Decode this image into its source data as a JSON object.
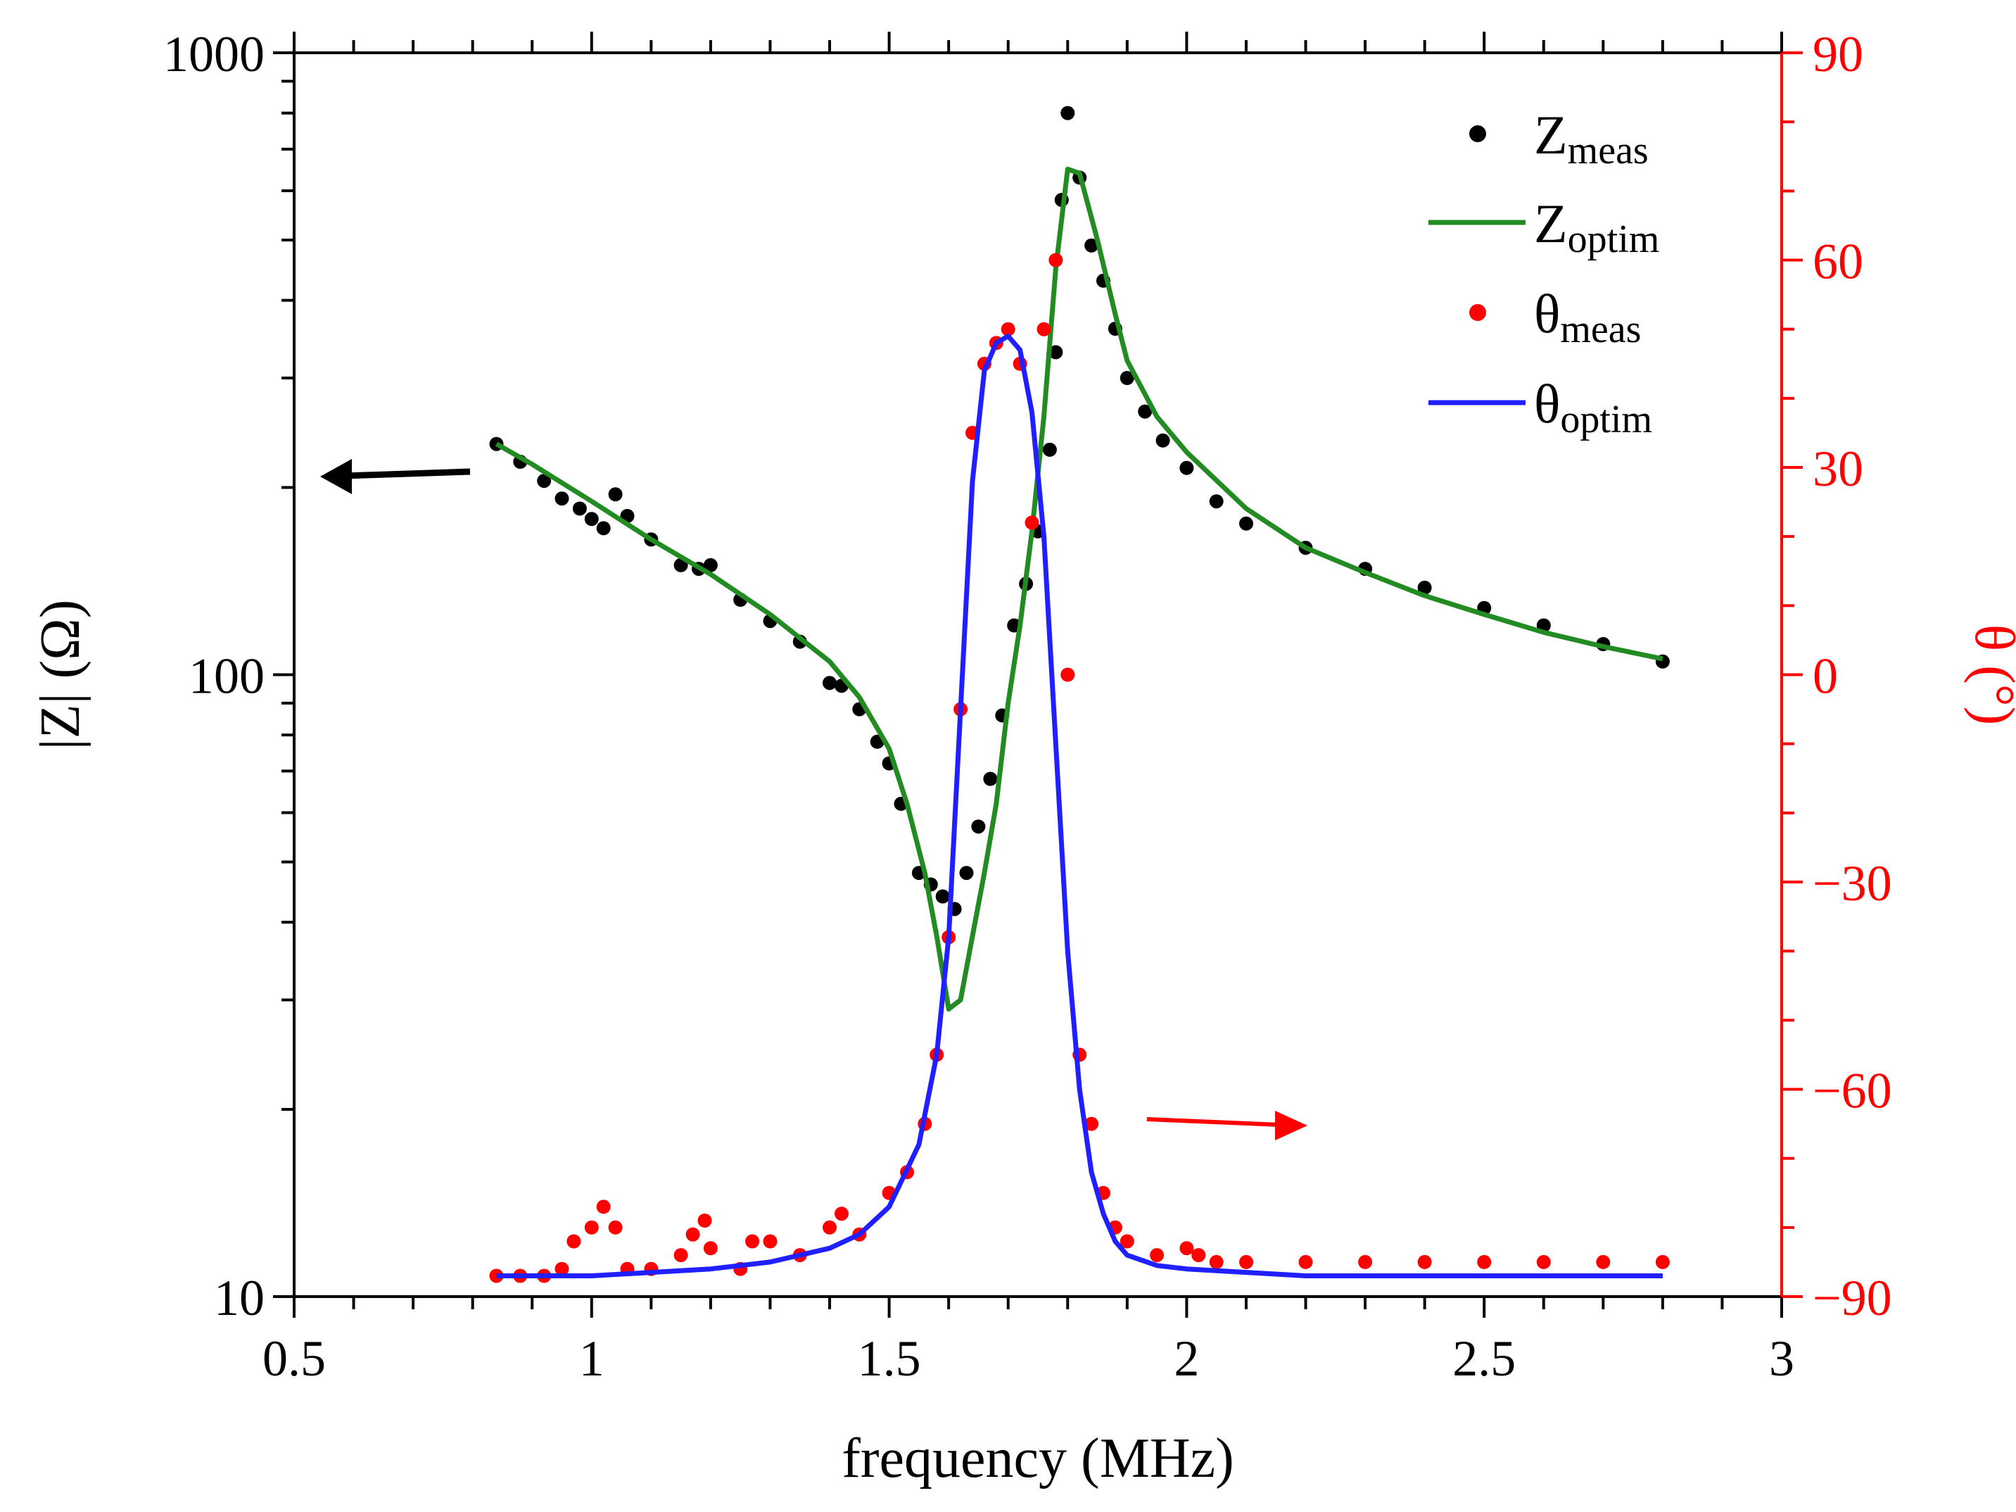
{
  "chart_data": {
    "type": "scatter",
    "title": "",
    "xlabel": "frequency (MHz)",
    "ylabel_left": "|Z| (Ω)",
    "ylabel_right": "θ (°)",
    "xlim": [
      0.5,
      3
    ],
    "ylim_left": [
      10,
      1000
    ],
    "ylim_right": [
      -90,
      90
    ],
    "yscale_left": "log",
    "grid": false,
    "legend_position": "top-right",
    "x_ticks": [
      {
        "value": 0.5,
        "label": "0.5"
      },
      {
        "value": 1,
        "label": "1"
      },
      {
        "value": 1.5,
        "label": "1.5"
      },
      {
        "value": 2,
        "label": "2"
      },
      {
        "value": 2.5,
        "label": "2.5"
      },
      {
        "value": 3,
        "label": "3"
      }
    ],
    "y_left_ticks": [
      {
        "value": 10,
        "label": "10"
      },
      {
        "value": 100,
        "label": "100"
      },
      {
        "value": 1000,
        "label": "1000"
      }
    ],
    "y_right_ticks": [
      {
        "value": -90,
        "label": "−90"
      },
      {
        "value": -60,
        "label": "−60"
      },
      {
        "value": -30,
        "label": "−30"
      },
      {
        "value": 0,
        "label": "0"
      },
      {
        "value": 30,
        "label": "30"
      },
      {
        "value": 60,
        "label": "60"
      },
      {
        "value": 90,
        "label": "90"
      }
    ],
    "colors": {
      "z_meas": "#000000",
      "z_optim": "#228b22",
      "theta_meas": "#ff0000",
      "theta_optim": "#1f1fff",
      "right_axis": "#ff0000"
    },
    "legend": [
      {
        "key": "z_meas",
        "main": "Z",
        "sub": "meas",
        "style": "dot"
      },
      {
        "key": "z_optim",
        "main": "Z",
        "sub": "optim",
        "style": "line"
      },
      {
        "key": "theta_meas",
        "main": "θ",
        "sub": "meas",
        "style": "dot"
      },
      {
        "key": "theta_optim",
        "main": "θ",
        "sub": "optim",
        "style": "line"
      }
    ],
    "series": [
      {
        "key": "z_meas",
        "axis": "left",
        "style": "dot",
        "x": [
          0.84,
          0.88,
          0.92,
          0.95,
          0.98,
          1.0,
          1.02,
          1.04,
          1.06,
          1.1,
          1.15,
          1.18,
          1.2,
          1.25,
          1.3,
          1.35,
          1.4,
          1.42,
          1.45,
          1.48,
          1.5,
          1.52,
          1.55,
          1.57,
          1.59,
          1.61,
          1.63,
          1.65,
          1.67,
          1.69,
          1.71,
          1.73,
          1.75,
          1.77,
          1.78,
          1.79,
          1.8,
          1.82,
          1.84,
          1.86,
          1.88,
          1.9,
          1.93,
          1.96,
          2.0,
          2.05,
          2.1,
          2.2,
          2.3,
          2.4,
          2.5,
          2.6,
          2.7,
          2.8
        ],
        "y": [
          235,
          220,
          205,
          192,
          185,
          178,
          172,
          195,
          180,
          165,
          150,
          148,
          150,
          132,
          122,
          113,
          97,
          96,
          88,
          78,
          72,
          62,
          48,
          46,
          44,
          42,
          48,
          57,
          68,
          86,
          120,
          140,
          170,
          230,
          330,
          580,
          800,
          630,
          490,
          430,
          360,
          300,
          265,
          238,
          215,
          190,
          175,
          160,
          148,
          138,
          128,
          120,
          112,
          105
        ]
      },
      {
        "key": "z_optim",
        "axis": "left",
        "style": "line",
        "x": [
          0.84,
          0.9,
          1.0,
          1.1,
          1.2,
          1.3,
          1.4,
          1.45,
          1.5,
          1.53,
          1.56,
          1.58,
          1.6,
          1.62,
          1.64,
          1.66,
          1.68,
          1.7,
          1.72,
          1.74,
          1.76,
          1.78,
          1.8,
          1.82,
          1.85,
          1.88,
          1.9,
          1.95,
          2.0,
          2.1,
          2.2,
          2.3,
          2.4,
          2.5,
          2.6,
          2.7,
          2.8
        ],
        "y": [
          235,
          218,
          190,
          165,
          145,
          125,
          105,
          92,
          76,
          62,
          48,
          38,
          29,
          30,
          38,
          48,
          62,
          90,
          120,
          170,
          260,
          450,
          650,
          640,
          500,
          380,
          320,
          260,
          228,
          185,
          160,
          146,
          134,
          125,
          117,
          111,
          106
        ]
      },
      {
        "key": "theta_meas",
        "axis": "right",
        "style": "dot",
        "x": [
          0.84,
          0.88,
          0.92,
          0.95,
          0.97,
          1.0,
          1.02,
          1.04,
          1.06,
          1.1,
          1.15,
          1.17,
          1.19,
          1.2,
          1.25,
          1.27,
          1.3,
          1.35,
          1.4,
          1.42,
          1.45,
          1.5,
          1.53,
          1.56,
          1.58,
          1.6,
          1.62,
          1.64,
          1.66,
          1.68,
          1.7,
          1.72,
          1.74,
          1.76,
          1.78,
          1.8,
          1.82,
          1.84,
          1.86,
          1.88,
          1.9,
          1.95,
          2.0,
          2.02,
          2.05,
          2.1,
          2.2,
          2.3,
          2.4,
          2.5,
          2.6,
          2.7,
          2.8
        ],
        "y": [
          -87,
          -87,
          -87,
          -86,
          -82,
          -80,
          -77,
          -80,
          -86,
          -86,
          -84,
          -81,
          -79,
          -83,
          -86,
          -82,
          -82,
          -84,
          -80,
          -78,
          -81,
          -75,
          -72,
          -65,
          -55,
          -38,
          -5,
          35,
          45,
          48,
          50,
          45,
          22,
          50,
          60,
          0,
          -55,
          -65,
          -75,
          -80,
          -82,
          -84,
          -83,
          -84,
          -85,
          -85,
          -85,
          -85,
          -85,
          -85,
          -85,
          -85,
          -85
        ]
      },
      {
        "key": "theta_optim",
        "axis": "right",
        "style": "line",
        "x": [
          0.84,
          1.0,
          1.2,
          1.3,
          1.4,
          1.45,
          1.5,
          1.55,
          1.58,
          1.6,
          1.62,
          1.64,
          1.66,
          1.68,
          1.7,
          1.72,
          1.74,
          1.76,
          1.78,
          1.8,
          1.82,
          1.84,
          1.86,
          1.88,
          1.9,
          1.95,
          2.0,
          2.1,
          2.2,
          2.4,
          2.6,
          2.8
        ],
        "y": [
          -87,
          -87,
          -86,
          -85,
          -83,
          -81,
          -77,
          -68,
          -55,
          -38,
          -5,
          28,
          44,
          48,
          49,
          47,
          38,
          20,
          -10,
          -40,
          -60,
          -72,
          -78,
          -82,
          -84,
          -85.5,
          -86,
          -86.5,
          -87,
          -87,
          -87,
          -87
        ]
      }
    ],
    "annotations": [
      {
        "name": "left-axis-arrow",
        "direction": "left",
        "axis": "left"
      },
      {
        "name": "right-axis-arrow",
        "direction": "right",
        "axis": "right"
      }
    ]
  }
}
